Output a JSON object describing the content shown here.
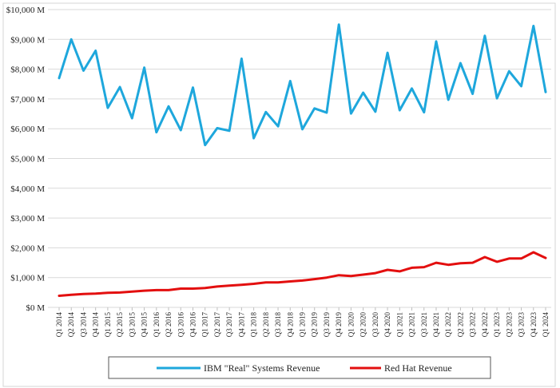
{
  "chart_data": {
    "type": "line",
    "title": "",
    "xlabel": "",
    "ylabel": "",
    "ylim": [
      0,
      10000
    ],
    "y_ticks": [
      0,
      1000,
      2000,
      3000,
      4000,
      5000,
      6000,
      7000,
      8000,
      9000,
      10000
    ],
    "y_tick_labels": [
      "$0 M",
      "$1,000 M",
      "$2,000 M",
      "$3,000 M",
      "$4,000 M",
      "$5,000 M",
      "$6,000 M",
      "$7,000 M",
      "$8,000 M",
      "$9,000 M",
      "$10,000 M"
    ],
    "grid": true,
    "legend_position": "bottom",
    "categories": [
      "Q1 2014",
      "Q2 2014",
      "Q3 2014",
      "Q4 2014",
      "Q1 2015",
      "Q2 2015",
      "Q3 2015",
      "Q4 2015",
      "Q1 2016",
      "Q2 2016",
      "Q3 2016",
      "Q4 2016",
      "Q1 2017",
      "Q2 2017",
      "Q3 2017",
      "Q4 2017",
      "Q1 2018",
      "Q2 2018",
      "Q3 2018",
      "Q4 2018",
      "Q1 2019",
      "Q2 2019",
      "Q3 2019",
      "Q4 2019",
      "Q1 2020",
      "Q2 2020",
      "Q3 2020",
      "Q4 2020",
      "Q1 2021",
      "Q2 2021",
      "Q3 2021",
      "Q4 2021",
      "Q1 2022",
      "Q2 2022",
      "Q3 2022",
      "Q4 2022",
      "Q1 2023",
      "Q2 2023",
      "Q3 2023",
      "Q4 2023",
      "Q1 2024"
    ],
    "series": [
      {
        "name": "IBM \"Real\" Systems Revenue",
        "color": "#1ea7dc",
        "values": [
          7700,
          9000,
          7950,
          8620,
          6700,
          7400,
          6350,
          8050,
          5880,
          6750,
          5950,
          7380,
          5450,
          6020,
          5930,
          8350,
          5680,
          6560,
          6080,
          7600,
          5980,
          6680,
          6540,
          9500,
          6510,
          7210,
          6570,
          8550,
          6620,
          7350,
          6550,
          8930,
          6970,
          8200,
          7170,
          9120,
          7020,
          7930,
          7430,
          9450,
          7230
        ]
      },
      {
        "name": "Red Hat Revenue",
        "color": "#e30f0f",
        "values": [
          390,
          420,
          450,
          460,
          490,
          500,
          530,
          560,
          580,
          580,
          630,
          630,
          650,
          700,
          730,
          760,
          790,
          840,
          840,
          870,
          900,
          950,
          1000,
          1080,
          1050,
          1100,
          1150,
          1260,
          1210,
          1330,
          1350,
          1500,
          1430,
          1480,
          1500,
          1690,
          1530,
          1640,
          1640,
          1850,
          1660
        ]
      }
    ]
  }
}
